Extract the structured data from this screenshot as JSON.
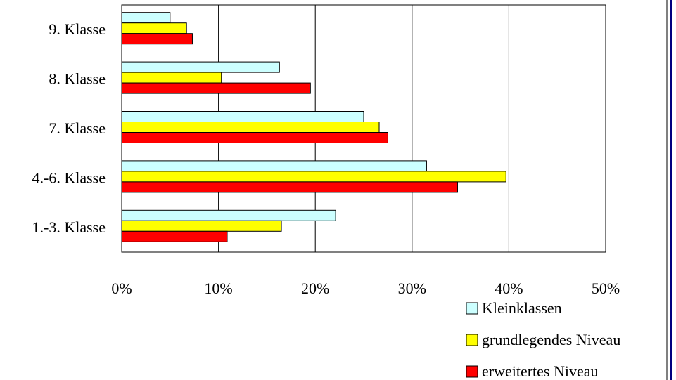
{
  "chart_data": {
    "type": "bar",
    "orientation": "horizontal",
    "categories": [
      "9. Klasse",
      "8. Klasse",
      "7. Klasse",
      "4.-6. Klasse",
      "1.-3. Klasse"
    ],
    "series": [
      {
        "name": "Kleinklassen",
        "color": "#CCFFFF",
        "values": [
          5,
          16.3,
          25,
          31.5,
          22.1
        ]
      },
      {
        "name": "grundlegendes Niveau",
        "color": "#FFFF00",
        "values": [
          6.7,
          10.3,
          26.6,
          39.7,
          16.5
        ]
      },
      {
        "name": "erweitertes Niveau",
        "color": "#FF0000",
        "values": [
          7.3,
          19.5,
          27.5,
          34.7,
          10.9
        ]
      }
    ],
    "xlim": [
      0,
      50
    ],
    "xticks": [
      "0%",
      "10%",
      "20%",
      "30%",
      "40%",
      "50%"
    ],
    "xtick_values": [
      0,
      10,
      20,
      30,
      40,
      50
    ],
    "grid": "vertical",
    "legend": "bottom-right"
  }
}
